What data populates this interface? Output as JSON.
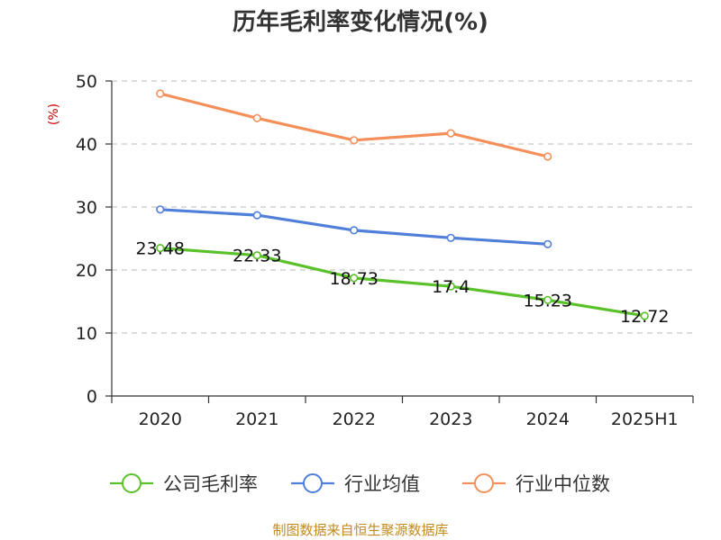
{
  "chart_data": {
    "type": "line",
    "title": "历年毛利率变化情况(%)",
    "ylabel": "(%)",
    "categories": [
      "2020",
      "2021",
      "2022",
      "2023",
      "2024",
      "2025H1"
    ],
    "ylim": [
      0,
      50
    ],
    "yticks": [
      0,
      10,
      20,
      30,
      40,
      50
    ],
    "grid": true,
    "legend_position": "bottom",
    "series": [
      {
        "name": "公司毛利率",
        "color": "#5ac12b",
        "values": [
          23.48,
          22.33,
          18.73,
          17.4,
          15.23,
          12.72
        ],
        "labels": [
          "23.48",
          "22.33",
          "18.73",
          "17.4",
          "15.23",
          "12.72"
        ]
      },
      {
        "name": "行业均值",
        "color": "#4f7fd9",
        "values": [
          29.6,
          28.7,
          26.3,
          25.1,
          24.1,
          null
        ]
      },
      {
        "name": "行业中位数",
        "color": "#f58f5a",
        "values": [
          48.0,
          44.1,
          40.6,
          41.7,
          38.0,
          null
        ]
      }
    ]
  },
  "footer": {
    "source": "制图数据来自恒生聚源数据库"
  }
}
